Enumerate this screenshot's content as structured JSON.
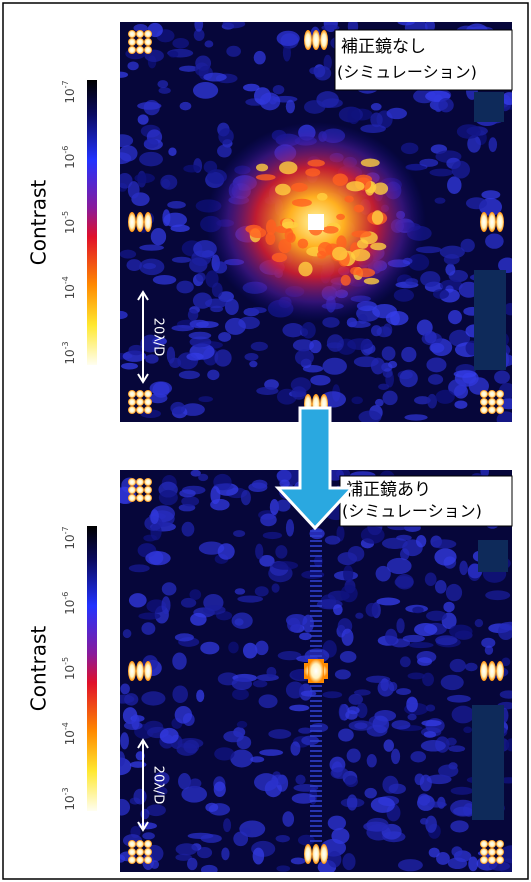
{
  "panels": [
    {
      "label": {
        "line1": "補正鏡なし",
        "line2": "(シミュレーション)"
      },
      "colorbar": {
        "axis_label": "Contrast",
        "ticks": [
          {
            "base": "10",
            "exp": "-7"
          },
          {
            "base": "10",
            "exp": "-6"
          },
          {
            "base": "10",
            "exp": "-5"
          },
          {
            "base": "10",
            "exp": "-4"
          },
          {
            "base": "10",
            "exp": "-3"
          }
        ]
      },
      "scale_label": "20λ/D"
    },
    {
      "label": {
        "line1": "補正鏡あり",
        "line2": "(シミュレーション)"
      },
      "colorbar": {
        "axis_label": "Contrast",
        "ticks": [
          {
            "base": "10",
            "exp": "-7"
          },
          {
            "base": "10",
            "exp": "-6"
          },
          {
            "base": "10",
            "exp": "-5"
          },
          {
            "base": "10",
            "exp": "-4"
          },
          {
            "base": "10",
            "exp": "-3"
          }
        ]
      },
      "scale_label": "20λ/D"
    }
  ]
}
